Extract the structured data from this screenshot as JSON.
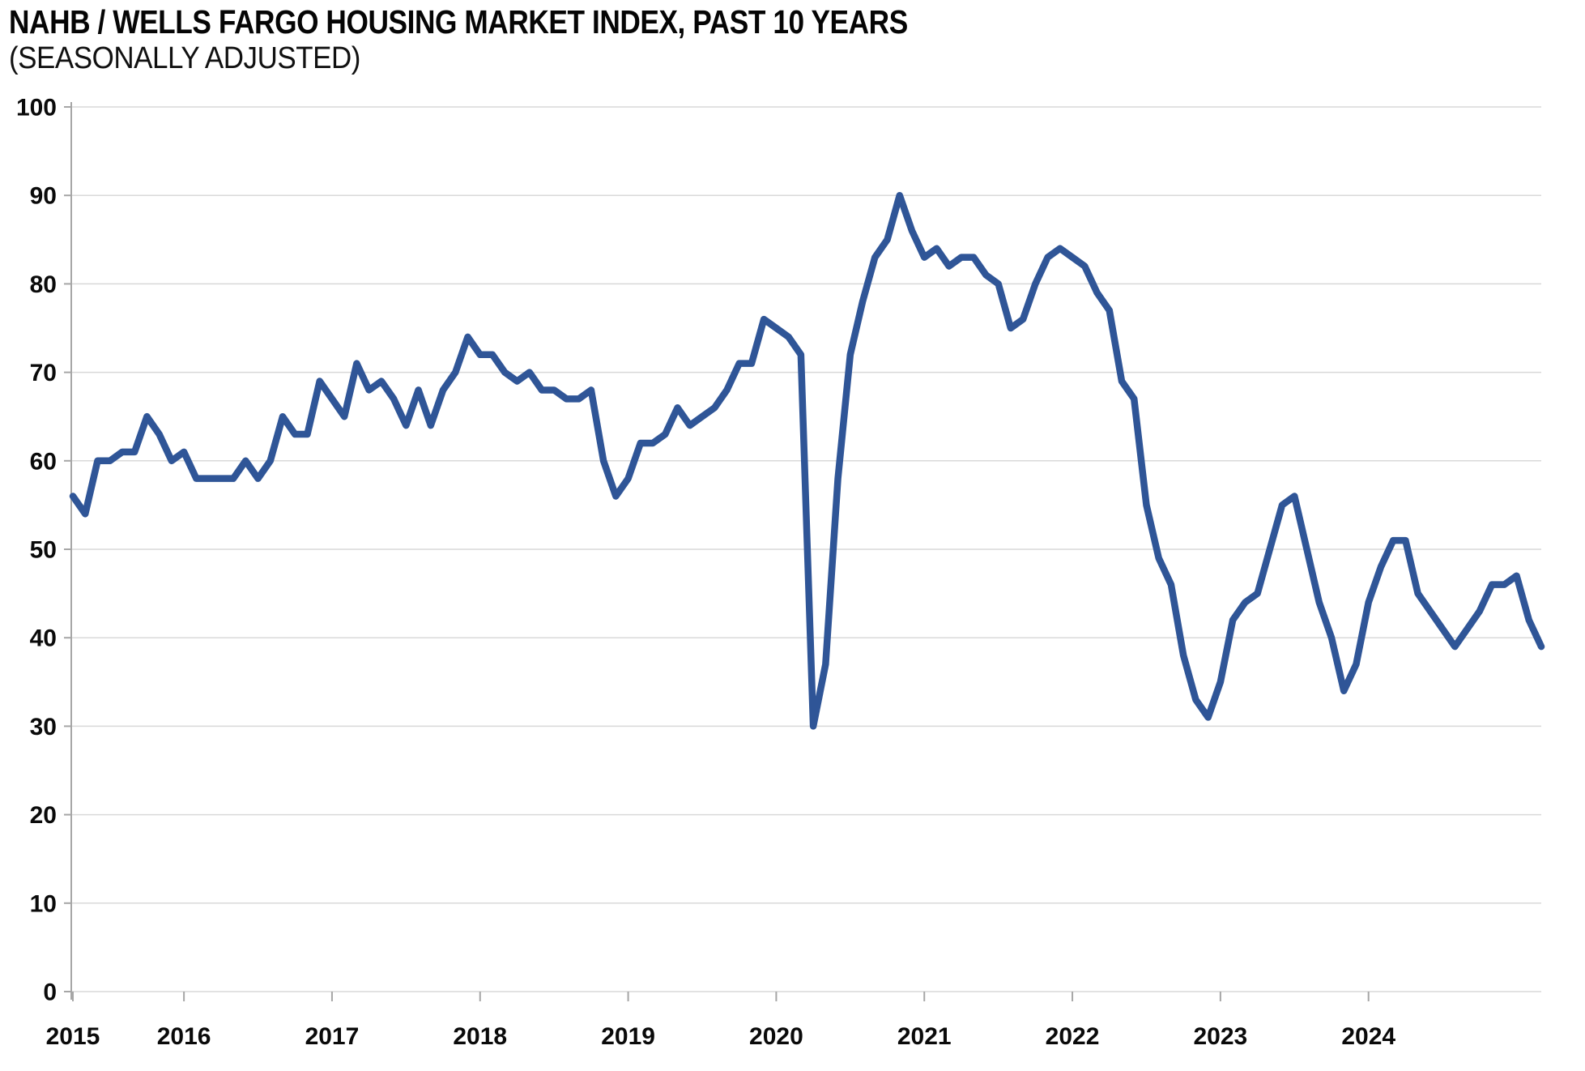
{
  "title": "NAHB / WELLS FARGO HOUSING MARKET INDEX, PAST 10 YEARS",
  "subtitle": "(SEASONALLY ADJUSTED)",
  "chart_data": {
    "type": "line",
    "title": "NAHB / WELLS FARGO HOUSING MARKET INDEX, PAST 10 YEARS",
    "subtitle": "(SEASONALLY ADJUSTED)",
    "xlabel": "",
    "ylabel": "",
    "ylim": [
      0,
      100
    ],
    "y_ticks": [
      0,
      10,
      20,
      30,
      40,
      50,
      60,
      70,
      80,
      90,
      100
    ],
    "grid": "horizontal",
    "legend": "none",
    "frequency": "monthly",
    "start_month": "2015-04",
    "end_month": "2025-03",
    "x_ticks": [
      {
        "label": "2015",
        "month_index": 0
      },
      {
        "label": "2016",
        "month_index": 9
      },
      {
        "label": "2017",
        "month_index": 21
      },
      {
        "label": "2018",
        "month_index": 33
      },
      {
        "label": "2019",
        "month_index": 45
      },
      {
        "label": "2020",
        "month_index": 57
      },
      {
        "label": "2021",
        "month_index": 69
      },
      {
        "label": "2022",
        "month_index": 81
      },
      {
        "label": "2023",
        "month_index": 93
      },
      {
        "label": "2024",
        "month_index": 105
      }
    ],
    "series": [
      {
        "name": "Housing Market Index (seasonally adjusted)",
        "values": [
          56,
          54,
          60,
          60,
          61,
          61,
          65,
          63,
          60,
          61,
          58,
          58,
          58,
          58,
          60,
          58,
          60,
          65,
          63,
          63,
          69,
          67,
          65,
          71,
          68,
          69,
          67,
          64,
          68,
          64,
          68,
          70,
          74,
          72,
          72,
          70,
          69,
          70,
          68,
          68,
          67,
          67,
          68,
          60,
          56,
          58,
          62,
          62,
          63,
          66,
          64,
          65,
          66,
          68,
          71,
          71,
          76,
          75,
          74,
          72,
          30,
          37,
          58,
          72,
          78,
          83,
          85,
          90,
          86,
          83,
          84,
          82,
          83,
          83,
          81,
          80,
          75,
          76,
          80,
          83,
          84,
          83,
          82,
          79,
          77,
          69,
          67,
          55,
          49,
          46,
          38,
          33,
          31,
          35,
          42,
          44,
          45,
          50,
          55,
          56,
          50,
          44,
          40,
          34,
          37,
          44,
          48,
          51,
          51,
          45,
          43,
          41,
          39,
          41,
          43,
          46,
          46,
          47,
          42,
          39
        ]
      }
    ],
    "colors": {
      "line": "#2f5597",
      "gridline": "#d9d9d9",
      "axis": "#a6a6a6",
      "text": "#0a0a0a"
    }
  }
}
